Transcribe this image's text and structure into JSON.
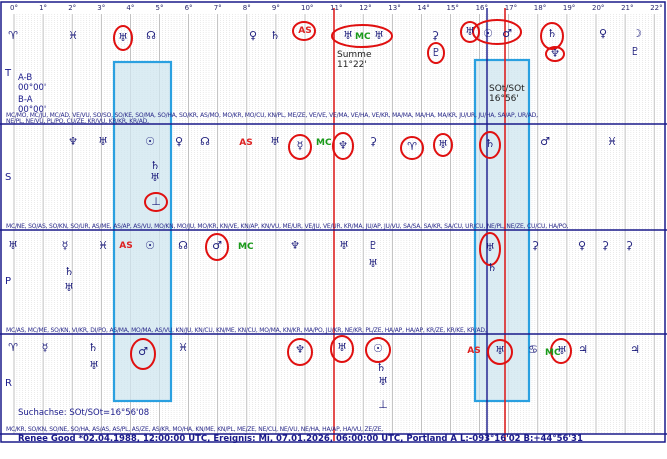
{
  "degree_scale": [
    "0°",
    "1°",
    "2°",
    "3°",
    "4°",
    "5°",
    "6°",
    "7°",
    "8°",
    "9°",
    "10°",
    "11°",
    "12°",
    "13°",
    "14°",
    "15°",
    "16°",
    "17°",
    "18°",
    "19°",
    "20°",
    "21°",
    "22°"
  ],
  "bands": {
    "T": "T",
    "S": "S",
    "P": "P",
    "R": "R"
  },
  "info": {
    "ab_label": "A-B",
    "ab_value": "00°00'",
    "ba_label": "B-A",
    "ba_value": "00°00'",
    "summe_label": "Summe",
    "summe_value": "11°22'",
    "sot_label": "SOt/SOt",
    "sot_value": "16°56'",
    "suchachse": "Suchachse: SOt/SOt=16°56'08"
  },
  "row_labels": {
    "t_midpoints_1": "MC/MO, MC/JU, MC/AD, VE/VU, SO/SO, SO/KE, SO/MA, SO/HA, SO/KR, AS/MO, MO/KR, MO/CU, KN/PL, ME/ZE, VE/VE, VE/MA, VE/HA, VE/KR, MA/MA, MA/HA, MA/KR, JU/UR, JU/HA, SA/AP, UR/AD,",
    "t_midpoints_2": "NE/PL, NE/VU, PL/PO, CU/ZE, KR/VU, KR/KR, KR/AD,",
    "s_midpoints": "MC/NE, SO/AS, SO/KN, SO/UR, AS/ME, AS/AP, AS/VU, MO/KN, MO/JU, MO/KR, KN/VE, KN/AP, KN/VU, ME/UR, VE/JU, VE/UR, KR/MA, JU/AP, JU/VU, SA/SA, SA/KR, SA/CU, UR/CU, NE/PL, NE/ZE, CU/CU, HA/PO,",
    "p_midpoints": "MC/AS, MC/ME, SO/KN, VI/KR, DI/PO, AS/MA, MO/MA, AS/VU, KN/JU, KN/CU, KN/ME, KN/CU, MO/MA, KN/KR, MA/PO, JU/KR, NE/KR, PL/ZE, HA/AP, HA/AP, KR/ZE, KR/KE, KR/AD,",
    "r_midpoints": "MC/KR, SO/KN, SO/NE, SO/HA, AS/AS, AS/PL, AS/ZE, AS/KR, MO/HA, KN/ME, KN/PL, ME/ZE, NE/CU, NE/VU, NE/HA, HA/AP, HA/VU, ZE/ZE,"
  },
  "footer": "Renee Good  *02.04.1988, 12:00:00 UTC, Ereignis: Mi, 07.01.2026, 06:00:00 UTC, Portland A       L:-093°16'02 B:+44°56'31",
  "glyphs": {
    "aries": "♈",
    "pisces": "♓",
    "uranus": "♅",
    "ascending_node": "☊",
    "venus": "♀",
    "saturn": "♄",
    "asc": "AS",
    "mc": "MC",
    "cancer": "♋",
    "pluto": "♇",
    "sun": "☉",
    "mars": "♂",
    "jupiter": "♃",
    "moon": "☽",
    "neptune": "♆",
    "mercury": "☿",
    "aspect_marker": "⊥",
    "ceres": "⚳"
  },
  "colors": {
    "frame": "#1a1a8a",
    "red_line": "#dd2222",
    "circle": "#e01010",
    "highlight_fill": "#cfe6ef",
    "highlight_border": "#2aa0e0",
    "grid": "#c8c8c8"
  }
}
